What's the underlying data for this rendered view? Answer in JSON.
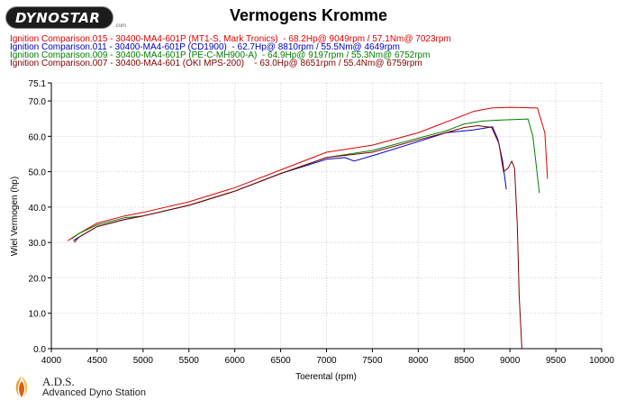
{
  "header": {
    "logo_text": "DYNOSTAR",
    "logo_sub": ".com",
    "title": "Vermogens Kromme"
  },
  "legend": [
    {
      "text": "Ignition Comparison.015 - 30400-MA4-601P (MT1-S, Mark Tronics)  - 68.2Hp@ 9049rpm / 57.1Nm@ 7023rpm",
      "color": "#e00000"
    },
    {
      "text": "Ignition Comparison.011 - 30400-MA4-601P (CD1900)  - 62.7Hp@ 8810rpm / 55.5Nm@ 4649rpm",
      "color": "#0000c0"
    },
    {
      "text": "Ignition Comparison.009 - 30400-MA4-601P (PE-C-MH900-A)  - 64.9Hp@ 9197rpm / 55.3Nm@ 6752rpm",
      "color": "#008000"
    },
    {
      "text": "Ignition Comparison.007 - 30400-MA4-601 (OKI MPS-200)    - 63.0Hp@ 8651rpm / 55.4Nm@ 6759rpm",
      "color": "#800000"
    }
  ],
  "footer": {
    "brand": "A.D.S.",
    "subtitle": "Advanced Dyno Station"
  },
  "chart_data": {
    "type": "line",
    "title": "Vermogens Kromme",
    "xlabel": "Toerental (rpm)",
    "ylabel": "Wiel Vermogen (hp)",
    "xlim": [
      4000,
      10000
    ],
    "ylim": [
      0,
      75.1
    ],
    "xticks": [
      4000,
      4500,
      5000,
      5500,
      6000,
      6500,
      7000,
      7500,
      8000,
      8500,
      9000,
      9500,
      10000
    ],
    "yticks": [
      0.0,
      10.0,
      20.0,
      30.0,
      40.0,
      50.0,
      60.0,
      70.0,
      75.1
    ],
    "ytick_labels": [
      "0.0",
      "10.0",
      "20.0",
      "30.0",
      "40.0",
      "50.0",
      "60.0",
      "70.0",
      "75.1"
    ],
    "grid": true,
    "series": [
      {
        "name": "Ignition Comparison.015",
        "color": "#e00000",
        "x": [
          4180,
          4300,
          4500,
          4800,
          5000,
          5500,
          6000,
          6500,
          7000,
          7500,
          8000,
          8200,
          8400,
          8600,
          8800,
          9000,
          9300,
          9380,
          9410
        ],
        "y": [
          30.5,
          32.5,
          35.5,
          37.5,
          38.5,
          41.5,
          45.5,
          50.5,
          55.5,
          57.5,
          61,
          63,
          65,
          67,
          68,
          68.2,
          68,
          61,
          48
        ]
      },
      {
        "name": "Ignition Comparison.011",
        "color": "#0000c0",
        "x": [
          4240,
          4300,
          4500,
          4800,
          5000,
          5500,
          6000,
          6500,
          7000,
          7200,
          7300,
          7500,
          8000,
          8300,
          8600,
          8810,
          8870,
          8920,
          8960
        ],
        "y": [
          30.5,
          31.5,
          34.5,
          36.5,
          37.5,
          40.5,
          44.5,
          49.5,
          53.5,
          54,
          53,
          54.5,
          58.5,
          61,
          61.8,
          62.7,
          59,
          53,
          45
        ]
      },
      {
        "name": "Ignition Comparison.009",
        "color": "#008000",
        "x": [
          4220,
          4300,
          4500,
          4800,
          5000,
          5500,
          6000,
          6500,
          7000,
          7500,
          8000,
          8300,
          8500,
          8700,
          8900,
          9197,
          9250,
          9290,
          9320
        ],
        "y": [
          31,
          32.5,
          35,
          37,
          37.5,
          40.5,
          44.5,
          49.5,
          54,
          56,
          59.5,
          61.5,
          63.5,
          64.3,
          64.6,
          64.9,
          60,
          51,
          44
        ]
      },
      {
        "name": "Ignition Comparison.007",
        "color": "#800000",
        "x": [
          4250,
          4300,
          4500,
          4800,
          5000,
          5500,
          6000,
          6500,
          7000,
          7500,
          8000,
          8300,
          8500,
          8651,
          8800,
          8880,
          8930,
          8980,
          9020,
          9050,
          9080,
          9100,
          9130
        ],
        "y": [
          30,
          31.5,
          34.5,
          36.5,
          37.5,
          40.5,
          44.5,
          49.5,
          54,
          55.5,
          59,
          61,
          62.5,
          63,
          62.5,
          58,
          50,
          51,
          53,
          51,
          35,
          15,
          0
        ]
      }
    ]
  }
}
